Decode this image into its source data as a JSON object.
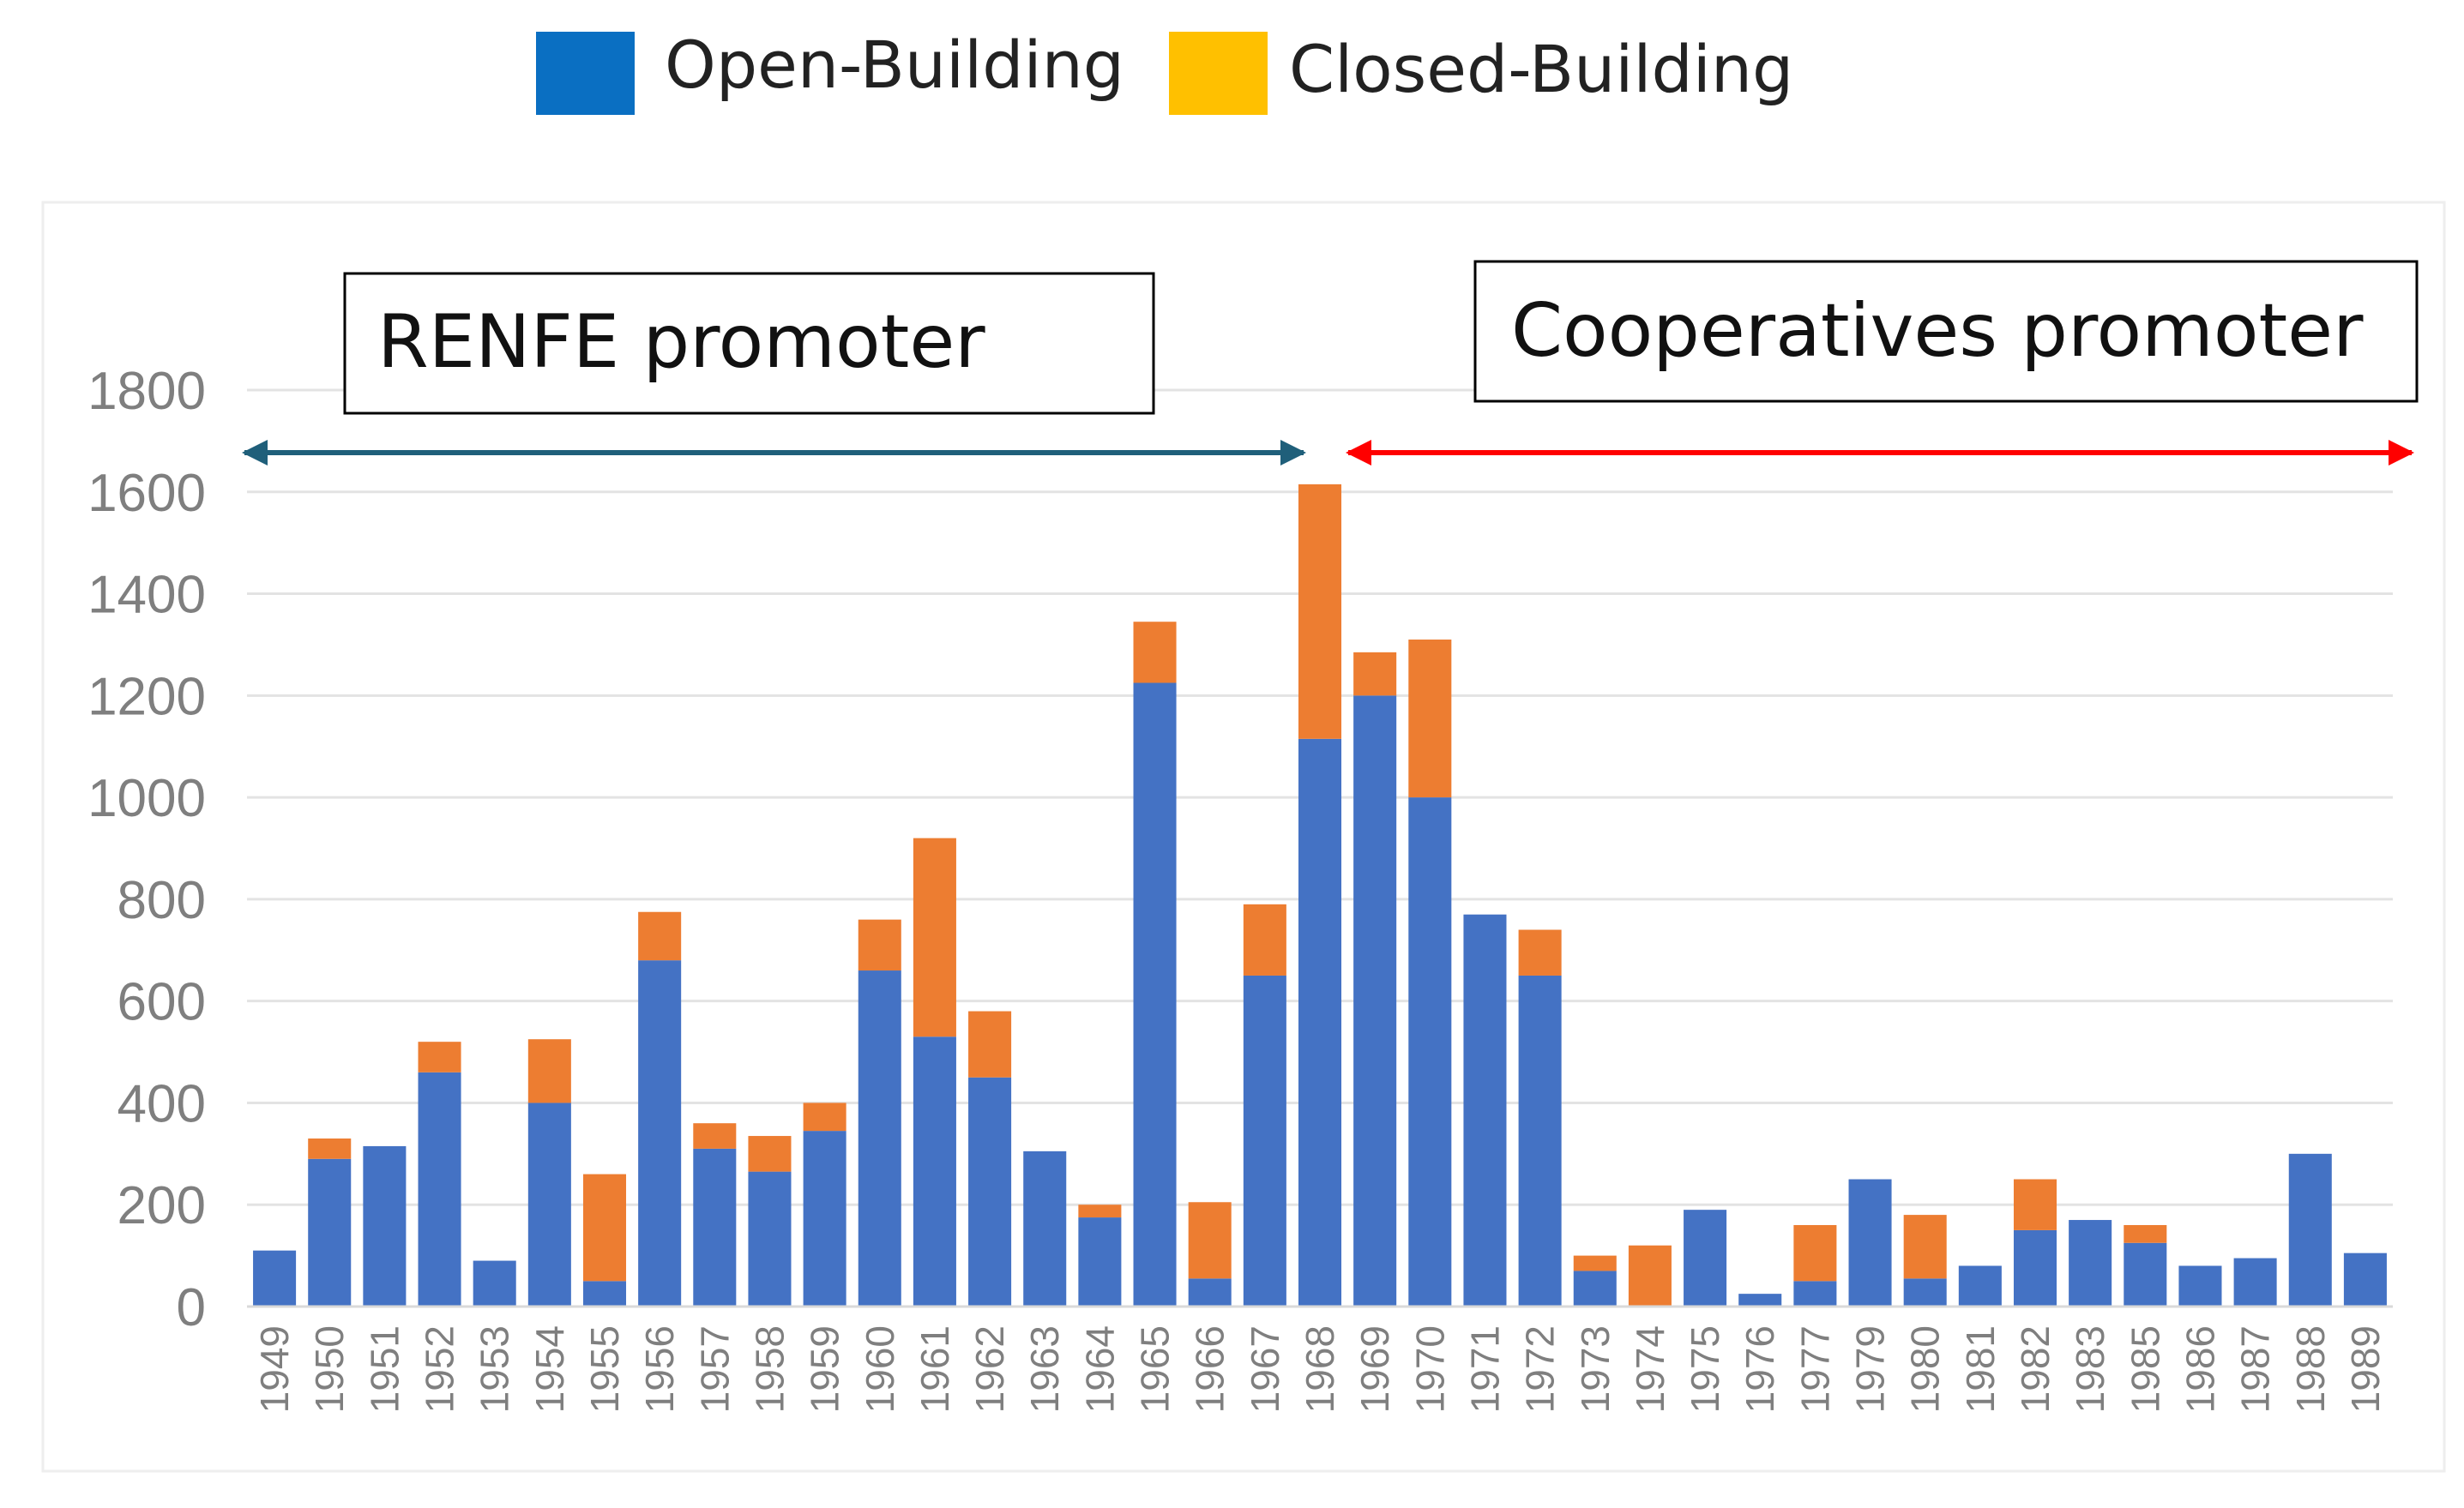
{
  "chart_data": {
    "type": "bar",
    "stacked": true,
    "title": "",
    "xlabel": "",
    "ylabel": "",
    "ylim": [
      0,
      1800
    ],
    "yticks": [
      0,
      200,
      400,
      600,
      800,
      1000,
      1200,
      1400,
      1600,
      1800
    ],
    "grid": true,
    "legend_position": "top",
    "categories": [
      "1949",
      "1950",
      "1951",
      "1952",
      "1953",
      "1954",
      "1955",
      "1956",
      "1957",
      "1958",
      "1959",
      "1960",
      "1961",
      "1962",
      "1963",
      "1964",
      "1965",
      "1966",
      "1967",
      "1968",
      "1969",
      "1970",
      "1971",
      "1972",
      "1973",
      "1974",
      "1975",
      "1976",
      "1977",
      "1979",
      "1980",
      "1981",
      "1982",
      "1983",
      "1985",
      "1986",
      "1987",
      "1988",
      "1989"
    ],
    "series": [
      {
        "name": "Open-Building",
        "color": "#4472c4",
        "values": [
          110,
          290,
          315,
          460,
          90,
          400,
          50,
          680,
          310,
          265,
          345,
          660,
          530,
          450,
          305,
          175,
          1225,
          55,
          650,
          1115,
          1200,
          1000,
          770,
          650,
          70,
          0,
          190,
          25,
          50,
          250,
          55,
          80,
          150,
          170,
          125,
          80,
          95,
          300,
          105
        ]
      },
      {
        "name": "Closed-Building",
        "color": "#ed7d31",
        "values": [
          0,
          40,
          0,
          60,
          0,
          125,
          210,
          95,
          50,
          70,
          55,
          100,
          390,
          130,
          0,
          25,
          120,
          150,
          140,
          500,
          85,
          310,
          0,
          90,
          30,
          120,
          0,
          0,
          110,
          0,
          125,
          0,
          100,
          0,
          35,
          0,
          0,
          0,
          0
        ]
      }
    ],
    "legend": [
      {
        "label": "Open-Building",
        "color": "#0a6fc2"
      },
      {
        "label": "Closed-Building",
        "color": "#ffc000"
      }
    ],
    "annotations": [
      {
        "text": "RENFE promoter",
        "range_from": "1949",
        "range_to": "1967",
        "arrow_color": "#1f5f7a"
      },
      {
        "text": "Cooperatives promoter",
        "range_from": "1968",
        "range_to": "1989",
        "arrow_color": "#ff0000"
      }
    ]
  }
}
